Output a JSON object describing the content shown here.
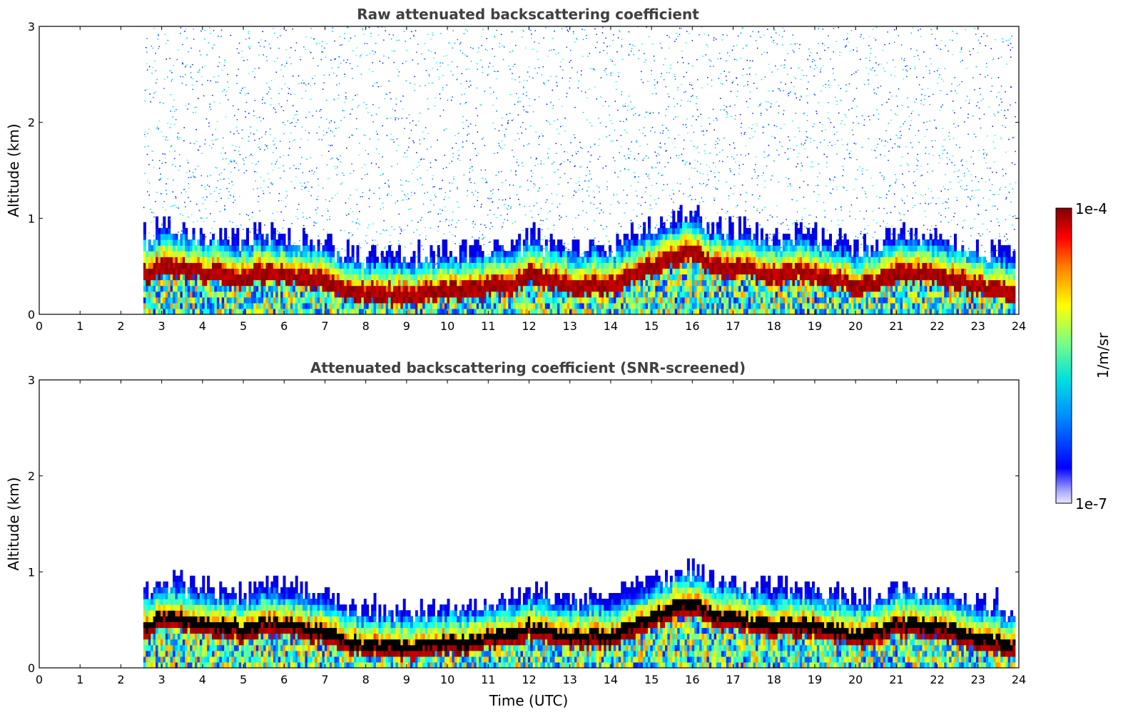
{
  "chart_data": [
    {
      "type": "heatmap",
      "title": "Raw attenuated backscattering coefficient",
      "xlabel": "",
      "ylabel": "Altitude (km)",
      "xlim": [
        0,
        24
      ],
      "ylim": [
        0,
        3
      ],
      "xticks": [
        "0",
        "1",
        "2",
        "3",
        "4",
        "5",
        "6",
        "7",
        "8",
        "9",
        "10",
        "11",
        "12",
        "13",
        "14",
        "15",
        "16",
        "17",
        "18",
        "19",
        "20",
        "21",
        "22",
        "23",
        "24"
      ],
      "yticks": [
        "0",
        "1",
        "2",
        "3"
      ],
      "data_start_time": 2.55,
      "data_end_time": 23.85,
      "layer_height_profile": {
        "time": [
          2.6,
          3.0,
          3.5,
          4.0,
          4.5,
          5.0,
          5.5,
          6.0,
          6.5,
          7.0,
          7.5,
          8.0,
          8.5,
          9.0,
          9.5,
          10.0,
          10.5,
          11.0,
          11.5,
          12.0,
          12.5,
          13.0,
          13.5,
          14.0,
          14.5,
          15.0,
          15.5,
          16.0,
          16.5,
          17.0,
          17.5,
          18.0,
          18.5,
          19.0,
          19.5,
          20.0,
          20.5,
          21.0,
          21.5,
          22.0,
          22.5,
          23.0,
          23.5,
          23.8
        ],
        "height_km": [
          0.42,
          0.5,
          0.48,
          0.45,
          0.42,
          0.38,
          0.45,
          0.42,
          0.38,
          0.35,
          0.25,
          0.22,
          0.22,
          0.2,
          0.22,
          0.25,
          0.25,
          0.28,
          0.32,
          0.4,
          0.35,
          0.3,
          0.32,
          0.3,
          0.4,
          0.5,
          0.6,
          0.65,
          0.5,
          0.5,
          0.45,
          0.4,
          0.45,
          0.4,
          0.35,
          0.3,
          0.35,
          0.45,
          0.42,
          0.4,
          0.35,
          0.3,
          0.25,
          0.2
        ]
      },
      "noise_above_layer": true
    },
    {
      "type": "heatmap",
      "title": "Attenuated backscattering coefficient (SNR-screened)",
      "xlabel": "Time (UTC)",
      "ylabel": "Altitude (km)",
      "xlim": [
        0,
        24
      ],
      "ylim": [
        0,
        3
      ],
      "xticks": [
        "0",
        "1",
        "2",
        "3",
        "4",
        "5",
        "6",
        "7",
        "8",
        "9",
        "10",
        "11",
        "12",
        "13",
        "14",
        "15",
        "16",
        "17",
        "18",
        "19",
        "20",
        "21",
        "22",
        "23",
        "24"
      ],
      "yticks": [
        "0",
        "1",
        "2",
        "3"
      ],
      "data_start_time": 2.55,
      "data_end_time": 23.85,
      "noise_above_layer": false
    }
  ],
  "colorbar": {
    "label": "1/m/sr",
    "max_label": "1e-4",
    "min_label": "1e-7",
    "vmin": 1e-07,
    "vmax": 0.0001,
    "scale": "log",
    "colormap": "jet"
  }
}
